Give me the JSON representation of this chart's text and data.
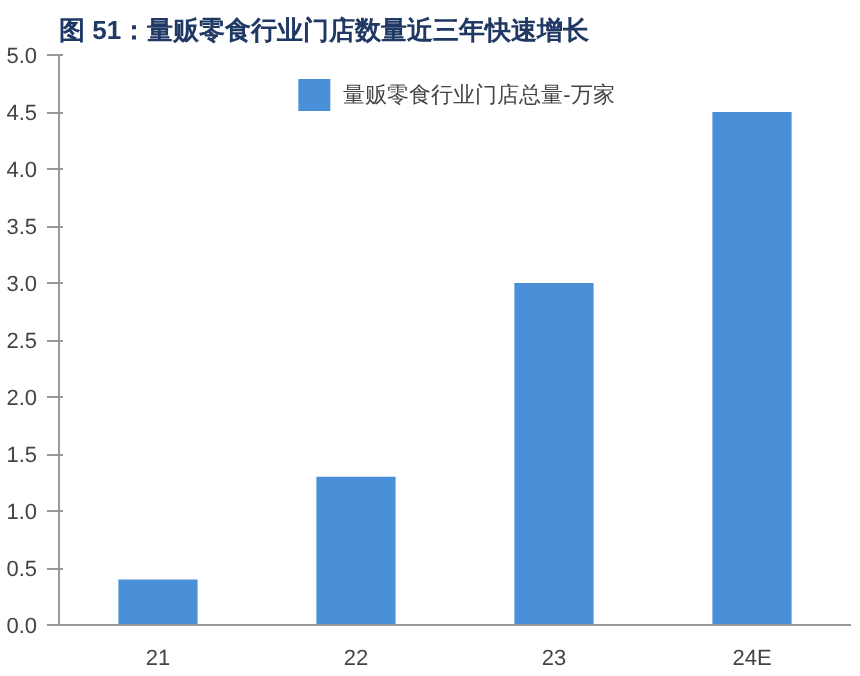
{
  "chart_data": {
    "type": "bar",
    "title": "图 51：量贩零食行业门店数量近三年快速增长",
    "categories": [
      "21",
      "22",
      "23",
      "24E"
    ],
    "series": [
      {
        "name": "量贩零食行业门店总量-万家",
        "color": "#4a90d9",
        "values": [
          0.4,
          1.3,
          3.0,
          4.5
        ]
      }
    ],
    "ylim": [
      0,
      5
    ],
    "yticks": [
      {
        "value": 0,
        "label": "0.0"
      },
      {
        "value": 0.5,
        "label": "0.5"
      },
      {
        "value": 1,
        "label": "1.0"
      },
      {
        "value": 1.5,
        "label": "1.5"
      },
      {
        "value": 2,
        "label": "2.0"
      },
      {
        "value": 2.5,
        "label": "2.5"
      },
      {
        "value": 3,
        "label": "3.0"
      },
      {
        "value": 3.5,
        "label": "3.5"
      },
      {
        "value": 4,
        "label": "4.0"
      },
      {
        "value": 4.5,
        "label": "4.5"
      },
      {
        "value": 5,
        "label": "5.0"
      }
    ],
    "grid": false,
    "legend": "top"
  }
}
